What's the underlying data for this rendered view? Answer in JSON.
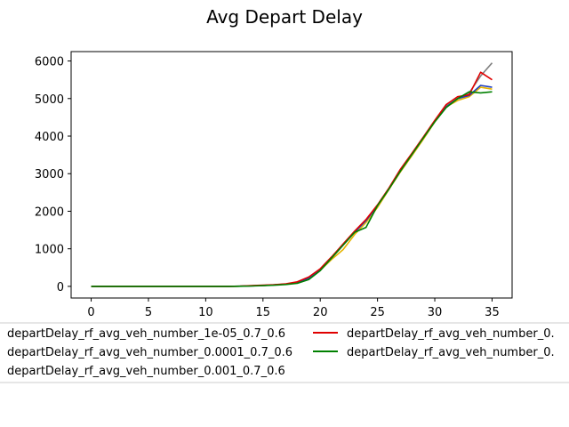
{
  "chart_data": {
    "type": "line",
    "title": "Avg Depart Delay",
    "xlabel": "",
    "ylabel": "",
    "xlim": [
      -1.75,
      36.75
    ],
    "ylim": [
      -310,
      6250
    ],
    "xticks": [
      0,
      5,
      10,
      15,
      20,
      25,
      30,
      35
    ],
    "yticks": [
      0,
      1000,
      2000,
      3000,
      4000,
      5000,
      6000
    ],
    "grid": false,
    "legend_placement": "below plot, two columns, clipped",
    "x": [
      0,
      1,
      2,
      3,
      4,
      5,
      6,
      7,
      8,
      9,
      10,
      11,
      12,
      13,
      14,
      15,
      16,
      17,
      18,
      19,
      20,
      21,
      22,
      23,
      24,
      25,
      26,
      27,
      28,
      29,
      30,
      31,
      32,
      33,
      34,
      35
    ],
    "series": [
      {
        "name": "departDelay_rf_avg_veh_number_1e-05_0.7_0.6",
        "color": "#808080",
        "values": [
          0,
          0,
          0,
          0,
          0,
          0,
          0,
          0,
          0,
          0,
          0,
          0,
          0,
          5,
          15,
          25,
          40,
          60,
          100,
          220,
          450,
          780,
          1120,
          1450,
          1760,
          2150,
          2600,
          3050,
          3500,
          3950,
          4400,
          4800,
          5000,
          5150,
          5600,
          5950
        ]
      },
      {
        "name": "departDelay_rf_avg_veh_number_0.0001_0.7_0.6",
        "color": "#e6b400",
        "values": [
          0,
          0,
          0,
          0,
          0,
          0,
          0,
          0,
          0,
          0,
          0,
          0,
          0,
          5,
          15,
          25,
          40,
          60,
          100,
          220,
          430,
          720,
          980,
          1380,
          1700,
          2100,
          2580,
          3050,
          3480,
          3920,
          4380,
          4780,
          4950,
          5050,
          5300,
          5250
        ]
      },
      {
        "name": "departDelay_rf_avg_veh_number_0.001_0.7_0.6",
        "color": "#1f3fbf",
        "values": [
          0,
          0,
          0,
          0,
          0,
          0,
          0,
          0,
          0,
          0,
          0,
          0,
          0,
          5,
          15,
          25,
          40,
          60,
          100,
          220,
          440,
          760,
          1100,
          1440,
          1750,
          2150,
          2600,
          3080,
          3520,
          3960,
          4400,
          4780,
          5000,
          5080,
          5350,
          5300
        ]
      },
      {
        "name": "departDelay_rf_avg_veh_number_0.",
        "color": "#e00000",
        "values": [
          0,
          0,
          0,
          0,
          0,
          0,
          0,
          0,
          0,
          0,
          0,
          0,
          0,
          5,
          20,
          30,
          45,
          70,
          120,
          250,
          470,
          790,
          1130,
          1470,
          1780,
          2170,
          2620,
          3120,
          3540,
          3980,
          4420,
          4840,
          5050,
          5100,
          5700,
          5500
        ]
      },
      {
        "name": "departDelay_rf_avg_veh_number_0.",
        "color": "#008000",
        "values": [
          0,
          0,
          0,
          0,
          0,
          0,
          0,
          0,
          0,
          0,
          0,
          0,
          0,
          3,
          10,
          20,
          30,
          50,
          80,
          180,
          420,
          760,
          1100,
          1440,
          1570,
          2150,
          2590,
          3070,
          3510,
          3950,
          4380,
          4760,
          5000,
          5180,
          5150,
          5180
        ]
      }
    ]
  }
}
